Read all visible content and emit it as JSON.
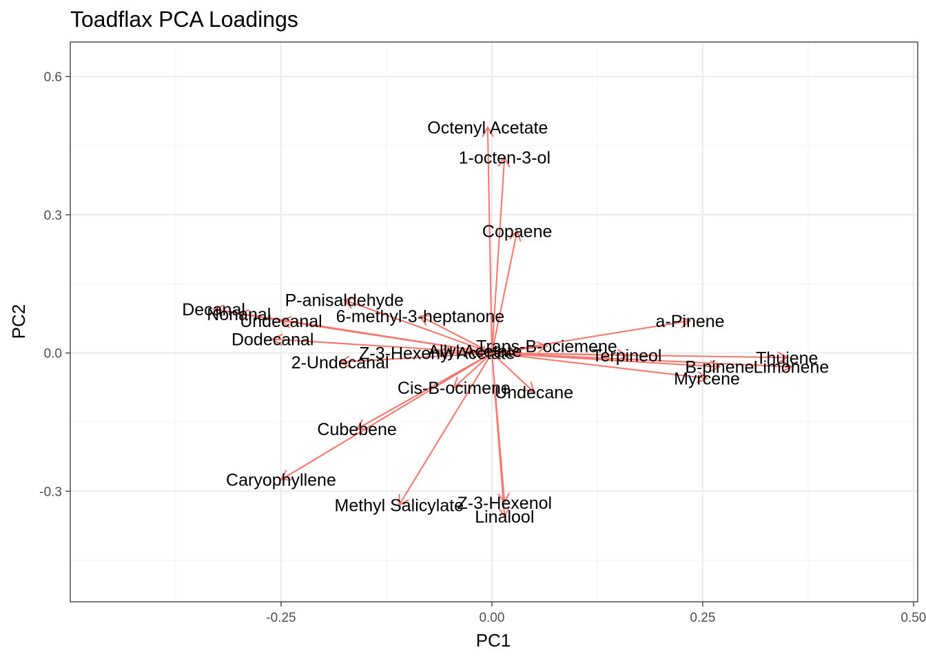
{
  "chart_data": {
    "type": "biplot-loadings",
    "title": "Toadflax PCA Loadings",
    "xlabel": "PC1",
    "ylabel": "PC2",
    "xlim": [
      -0.5,
      0.505
    ],
    "ylim": [
      -0.54,
      0.675
    ],
    "x_ticks": [
      -0.25,
      0.0,
      0.25,
      0.5
    ],
    "x_tick_labels": [
      "-0.25",
      "0.00",
      "0.25",
      "0.50"
    ],
    "y_ticks": [
      -0.3,
      0.0,
      0.3,
      0.6
    ],
    "y_tick_labels": [
      "-0.3",
      "0.0",
      "0.3",
      "0.6"
    ],
    "x_minor": [
      -0.375,
      -0.125,
      0.125,
      0.375
    ],
    "y_minor": [
      -0.45,
      -0.15,
      0.15,
      0.45
    ],
    "grid": true,
    "arrow_color": "#f8766d",
    "vectors": [
      {
        "name": "Octenyl Acetate",
        "x": -0.005,
        "y": 0.49
      },
      {
        "name": "1-octen-3-ol",
        "x": 0.015,
        "y": 0.425
      },
      {
        "name": "Copaene",
        "x": 0.03,
        "y": 0.265
      },
      {
        "name": "P-anisaldehyde",
        "x": -0.175,
        "y": 0.115
      },
      {
        "name": "6-methyl-3-heptanone",
        "x": -0.085,
        "y": 0.08
      },
      {
        "name": "Decanal",
        "x": -0.33,
        "y": 0.095
      },
      {
        "name": "Nonanal",
        "x": -0.3,
        "y": 0.085
      },
      {
        "name": "Undecanal",
        "x": -0.25,
        "y": 0.07
      },
      {
        "name": "Dodecanal",
        "x": -0.26,
        "y": 0.03
      },
      {
        "name": "a-Pinene",
        "x": 0.235,
        "y": 0.07
      },
      {
        "name": "Trans-B-ociemene",
        "x": 0.065,
        "y": 0.015
      },
      {
        "name": "Z-3-Hexenyl Acetate",
        "x": -0.065,
        "y": 0.0
      },
      {
        "name": "Allyl Acetate",
        "x": -0.02,
        "y": 0.005
      },
      {
        "name": "Terpineol",
        "x": 0.16,
        "y": -0.005
      },
      {
        "name": "Thujene",
        "x": 0.35,
        "y": -0.01
      },
      {
        "name": "Limonene",
        "x": 0.355,
        "y": -0.03
      },
      {
        "name": "B-pinene",
        "x": 0.27,
        "y": -0.03
      },
      {
        "name": "Myrcene",
        "x": 0.255,
        "y": -0.055
      },
      {
        "name": "2-Undecanal",
        "x": -0.18,
        "y": -0.02
      },
      {
        "name": "Cis-B-ocimene",
        "x": -0.045,
        "y": -0.075
      },
      {
        "name": "Undecane",
        "x": 0.05,
        "y": -0.085
      },
      {
        "name": "Cubebene",
        "x": -0.16,
        "y": -0.165
      },
      {
        "name": "Caryophyllene",
        "x": -0.25,
        "y": -0.275
      },
      {
        "name": "Methyl Salicylate",
        "x": -0.11,
        "y": -0.33
      },
      {
        "name": "Z-3-Hexenol",
        "x": 0.015,
        "y": -0.325
      },
      {
        "name": "Linalool",
        "x": 0.015,
        "y": -0.355
      }
    ]
  }
}
